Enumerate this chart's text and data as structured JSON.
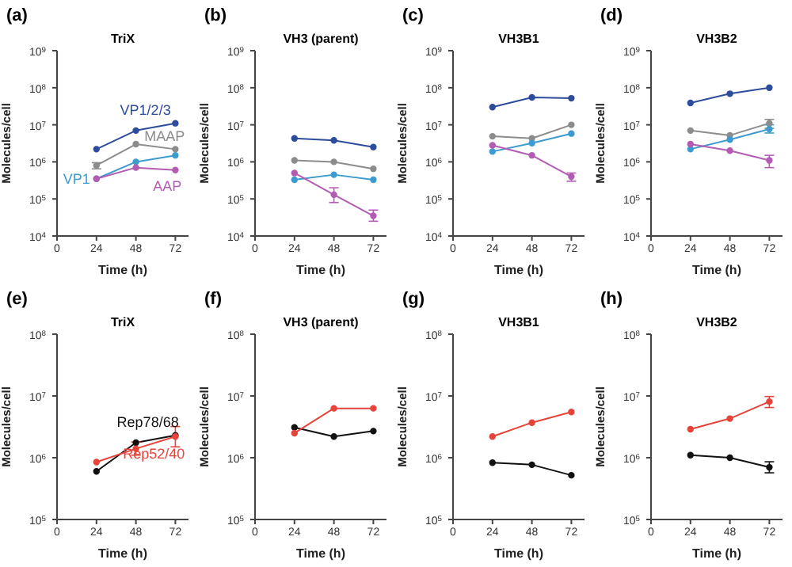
{
  "chart_data": [
    {
      "type": "line",
      "title": "TriX",
      "annotations": [
        "(a)"
      ],
      "xlabel": "Time (h)",
      "ylabel": "Molecules/cell",
      "log": "y",
      "xlim": [
        0,
        80
      ],
      "xticks": [
        0,
        24,
        48,
        72
      ],
      "ylim": [
        10000,
        1000000000
      ],
      "yticks": [
        {
          "value": 10000,
          "label": "10$^{4}$"
        },
        {
          "value": 100000,
          "label": "10$^{5}$"
        },
        {
          "value": 1000000,
          "label": "10$^{6}$"
        },
        {
          "value": 10000000,
          "label": "10$^{7}$"
        },
        {
          "value": 100000000,
          "label": "10$^{8}$"
        },
        {
          "value": 1000000000,
          "label": "10$^{9}$"
        }
      ],
      "marker": "circle",
      "x": [
        24,
        48,
        72
      ],
      "series": [
        {
          "name": "VP1/2/3",
          "color": "#2d4c9c",
          "values": [
            2200000,
            7000000,
            11000000
          ]
        },
        {
          "name": "MAAP",
          "color": "#8c8c8c",
          "values": [
            800000,
            3000000,
            2200000
          ],
          "errors": [
            [
              650000,
              950000
            ],
            null,
            null
          ]
        },
        {
          "name": "VP1",
          "color": "#3e9bcf",
          "values": [
            350000,
            1000000,
            1500000
          ]
        },
        {
          "name": "AAP",
          "color": "#b35cb3",
          "values": [
            350000,
            700000,
            600000
          ]
        }
      ]
    },
    {
      "type": "line",
      "title": "VH3 (parent)",
      "annotations": [
        "(b)"
      ],
      "xlabel": "Time (h)",
      "ylabel": "Molecules/cell",
      "log": "y",
      "xlim": [
        0,
        80
      ],
      "xticks": [
        0,
        24,
        48,
        72
      ],
      "ylim": [
        10000,
        1000000000
      ],
      "yticks": [
        {
          "value": 10000,
          "label": "10$^{4}$"
        },
        {
          "value": 100000,
          "label": "10$^{5}$"
        },
        {
          "value": 1000000,
          "label": "10$^{6}$"
        },
        {
          "value": 10000000,
          "label": "10$^{7}$"
        },
        {
          "value": 100000000,
          "label": "10$^{8}$"
        },
        {
          "value": 1000000000,
          "label": "10$^{9}$"
        }
      ],
      "marker": "circle",
      "x": [
        24,
        48,
        72
      ],
      "series": [
        {
          "color": "#2d4c9c",
          "values": [
            4300000,
            3800000,
            2500000
          ]
        },
        {
          "color": "#8c8c8c",
          "values": [
            1100000,
            1000000,
            650000
          ]
        },
        {
          "color": "#3e9bcf",
          "values": [
            330000,
            450000,
            330000
          ]
        },
        {
          "color": "#b35cb3",
          "values": [
            500000,
            130000,
            35000
          ],
          "errors": [
            null,
            [
              80000,
              200000
            ],
            [
              25000,
              50000
            ]
          ]
        }
      ]
    },
    {
      "type": "line",
      "title": "VH3B1",
      "annotations": [
        "(c)"
      ],
      "xlabel": "Time (h)",
      "ylabel": "Molecules/cell",
      "log": "y",
      "xlim": [
        0,
        80
      ],
      "xticks": [
        0,
        24,
        48,
        72
      ],
      "ylim": [
        10000,
        1000000000
      ],
      "yticks": [
        {
          "value": 10000,
          "label": "10$^{4}$"
        },
        {
          "value": 100000,
          "label": "10$^{5}$"
        },
        {
          "value": 1000000,
          "label": "10$^{6}$"
        },
        {
          "value": 10000000,
          "label": "10$^{7}$"
        },
        {
          "value": 100000000,
          "label": "10$^{8}$"
        },
        {
          "value": 1000000000,
          "label": "10$^{9}$"
        }
      ],
      "marker": "circle",
      "x": [
        24,
        48,
        72
      ],
      "series": [
        {
          "color": "#2d4c9c",
          "values": [
            30000000,
            55000000,
            52000000
          ]
        },
        {
          "color": "#8c8c8c",
          "values": [
            4900000,
            4300000,
            10000000
          ]
        },
        {
          "color": "#3e9bcf",
          "values": [
            1900000,
            3200000,
            5800000
          ]
        },
        {
          "color": "#b35cb3",
          "values": [
            2800000,
            1500000,
            400000
          ],
          "errors": [
            null,
            null,
            [
              300000,
              500000
            ]
          ]
        }
      ]
    },
    {
      "type": "line",
      "title": "VH3B2",
      "annotations": [
        "(d)"
      ],
      "xlabel": "Time (h)",
      "ylabel": "Molecules/cell",
      "log": "y",
      "xlim": [
        0,
        80
      ],
      "xticks": [
        0,
        24,
        48,
        72
      ],
      "ylim": [
        10000,
        1000000000
      ],
      "yticks": [
        {
          "value": 10000,
          "label": "10$^{4}$"
        },
        {
          "value": 100000,
          "label": "10$^{5}$"
        },
        {
          "value": 1000000,
          "label": "10$^{6}$"
        },
        {
          "value": 10000000,
          "label": "10$^{7}$"
        },
        {
          "value": 100000000,
          "label": "10$^{8}$"
        },
        {
          "value": 1000000000,
          "label": "10$^{9}$"
        }
      ],
      "marker": "circle",
      "x": [
        24,
        48,
        72
      ],
      "series": [
        {
          "color": "#2d4c9c",
          "values": [
            39000000,
            69000000,
            100000000
          ]
        },
        {
          "color": "#8c8c8c",
          "values": [
            7000000,
            5200000,
            11000000
          ],
          "errors": [
            null,
            null,
            [
              8000000,
              14000000
            ]
          ]
        },
        {
          "color": "#3e9bcf",
          "values": [
            2200000,
            4000000,
            7700000
          ],
          "errors": [
            null,
            null,
            [
              6000000,
              10000000
            ]
          ]
        },
        {
          "color": "#b35cb3",
          "values": [
            3000000,
            2000000,
            1100000
          ],
          "errors": [
            null,
            null,
            [
              700000,
              1500000
            ]
          ]
        }
      ]
    },
    {
      "type": "line",
      "title": "TriX",
      "annotations": [
        "(e)"
      ],
      "xlabel": "Time (h)",
      "ylabel": "Molecules/cell",
      "log": "y",
      "xlim": [
        0,
        80
      ],
      "xticks": [
        0,
        24,
        48,
        72
      ],
      "ylim": [
        100000,
        100000000
      ],
      "yticks": [
        {
          "value": 100000,
          "label": "10$^{5}$"
        },
        {
          "value": 1000000,
          "label": "10$^{6}$"
        },
        {
          "value": 10000000,
          "label": "10$^{7}$"
        },
        {
          "value": 100000000,
          "label": "10$^{8}$"
        }
      ],
      "marker": "circle",
      "x": [
        24,
        48,
        72
      ],
      "series": [
        {
          "name": "Rep78/68",
          "color": "#111111",
          "values": [
            600000,
            1750000,
            2300000
          ]
        },
        {
          "name": "Rep52/40",
          "color": "#e5443a",
          "values": [
            850000,
            1400000,
            2200000
          ],
          "errors": [
            null,
            [
              1100000,
              1800000
            ],
            [
              1500000,
              3200000
            ]
          ]
        }
      ]
    },
    {
      "type": "line",
      "title": "VH3 (parent)",
      "annotations": [
        "(f)"
      ],
      "xlabel": "Time (h)",
      "ylabel": "Molecules/cell",
      "log": "y",
      "xlim": [
        0,
        80
      ],
      "xticks": [
        0,
        24,
        48,
        72
      ],
      "ylim": [
        100000,
        100000000
      ],
      "yticks": [
        {
          "value": 100000,
          "label": "10$^{5}$"
        },
        {
          "value": 1000000,
          "label": "10$^{6}$"
        },
        {
          "value": 10000000,
          "label": "10$^{7}$"
        },
        {
          "value": 100000000,
          "label": "10$^{8}$"
        }
      ],
      "marker": "circle",
      "x": [
        24,
        48,
        72
      ],
      "series": [
        {
          "color": "#111111",
          "values": [
            3100000,
            2200000,
            2700000
          ]
        },
        {
          "color": "#e5443a",
          "values": [
            2500000,
            6300000,
            6300000
          ]
        }
      ]
    },
    {
      "type": "line",
      "title": "VH3B1",
      "annotations": [
        "(g)"
      ],
      "xlabel": "Time (h)",
      "ylabel": "Molecules/cell",
      "log": "y",
      "xlim": [
        0,
        80
      ],
      "xticks": [
        0,
        24,
        48,
        72
      ],
      "ylim": [
        100000,
        100000000
      ],
      "yticks": [
        {
          "value": 100000,
          "label": "10$^{5}$"
        },
        {
          "value": 1000000,
          "label": "10$^{6}$"
        },
        {
          "value": 10000000,
          "label": "10$^{7}$"
        },
        {
          "value": 100000000,
          "label": "10$^{8}$"
        }
      ],
      "marker": "circle",
      "x": [
        24,
        48,
        72
      ],
      "series": [
        {
          "color": "#111111",
          "values": [
            830000,
            770000,
            520000
          ]
        },
        {
          "color": "#e5443a",
          "values": [
            2200000,
            3700000,
            5500000
          ]
        }
      ]
    },
    {
      "type": "line",
      "title": "VH3B2",
      "annotations": [
        "(h)"
      ],
      "xlabel": "Time (h)",
      "ylabel": "Molecules/cell",
      "log": "y",
      "xlim": [
        0,
        80
      ],
      "xticks": [
        0,
        24,
        48,
        72
      ],
      "ylim": [
        100000,
        100000000
      ],
      "yticks": [
        {
          "value": 100000,
          "label": "10$^{5}$"
        },
        {
          "value": 1000000,
          "label": "10$^{6}$"
        },
        {
          "value": 10000000,
          "label": "10$^{7}$"
        },
        {
          "value": 100000000,
          "label": "10$^{8}$"
        }
      ],
      "marker": "circle",
      "x": [
        24,
        48,
        72
      ],
      "series": [
        {
          "color": "#111111",
          "values": [
            1100000,
            1000000,
            700000
          ],
          "errors": [
            null,
            null,
            [
              570000,
              860000
            ]
          ]
        },
        {
          "color": "#e5443a",
          "values": [
            2900000,
            4300000,
            8100000
          ],
          "errors": [
            null,
            null,
            [
              6500000,
              9800000
            ]
          ]
        }
      ]
    }
  ]
}
